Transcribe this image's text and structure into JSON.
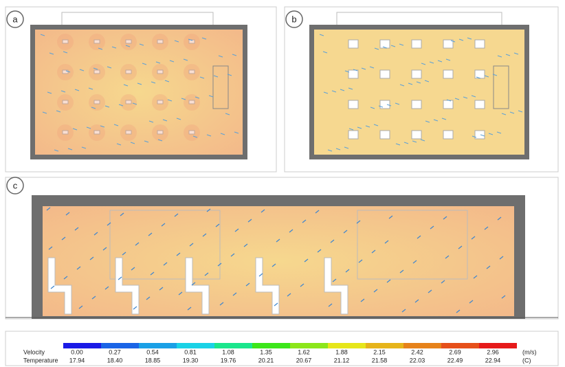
{
  "panels": [
    {
      "label": "a"
    },
    {
      "label": "b"
    },
    {
      "label": "c"
    }
  ],
  "legend": {
    "colors": [
      "#1a1ae6",
      "#1a64e6",
      "#1aa0e6",
      "#1ad2e6",
      "#1ae68c",
      "#3ce61a",
      "#8ce61a",
      "#e6e61a",
      "#e6b41a",
      "#e6821a",
      "#e6501a",
      "#e61a1a"
    ],
    "rows": [
      {
        "name": "Velocity",
        "values": [
          "0.00",
          "0.27",
          "0.54",
          "0.81",
          "1.08",
          "1.35",
          "1.62",
          "1.88",
          "2.15",
          "2.42",
          "2.69",
          "2.96"
        ],
        "unit": "(m/s)"
      },
      {
        "name": "Temperature",
        "values": [
          "17.94",
          "18.40",
          "18.85",
          "19.30",
          "19.76",
          "20.21",
          "20.67",
          "21.12",
          "21.58",
          "22.03",
          "22.49",
          "22.94"
        ],
        "unit": "(C)"
      }
    ]
  }
}
